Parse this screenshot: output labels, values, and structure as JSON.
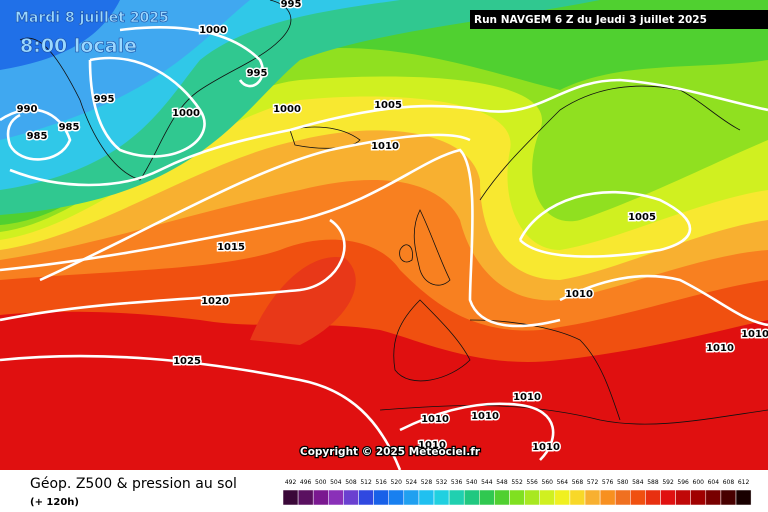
{
  "header": {
    "date": "Mardi 8 juillet 2025",
    "time": "8:00 locale",
    "run": "Run NAVGEM 6 Z du Jeudi 3 juillet 2025"
  },
  "isobar_labels": [
    1000,
    995,
    995,
    1000,
    1000,
    990,
    995,
    985,
    985,
    1005,
    1010,
    1015,
    1020,
    1025,
    1005,
    1010,
    1010,
    1010,
    1010,
    1010,
    1010,
    1010,
    1010
  ],
  "copyright": "Copyright © 2025 Meteociel.fr",
  "footer": {
    "title": "Géop. Z500 & pression au sol",
    "lead": "(+ 120h)"
  },
  "scale": {
    "labels": [
      492,
      496,
      500,
      504,
      508,
      512,
      516,
      520,
      524,
      528,
      532,
      536,
      540,
      544,
      548,
      552,
      556,
      560,
      564,
      568,
      572,
      576,
      580,
      584,
      588,
      592,
      596,
      600,
      604,
      608,
      612
    ],
    "colors": [
      "#3a0838",
      "#5a1060",
      "#7a1890",
      "#8a30b8",
      "#6a40d0",
      "#3048e0",
      "#1860e8",
      "#1880f0",
      "#20a0f0",
      "#20c0f0",
      "#20d0e0",
      "#20d0b0",
      "#20c880",
      "#30c850",
      "#50d030",
      "#80e020",
      "#a8e820",
      "#d0f020",
      "#f0f020",
      "#f8d828",
      "#f8b030",
      "#f89020",
      "#f07020",
      "#f05010",
      "#e83010",
      "#e01010",
      "#c00808",
      "#a00000",
      "#780000",
      "#480000",
      "#180000"
    ]
  }
}
